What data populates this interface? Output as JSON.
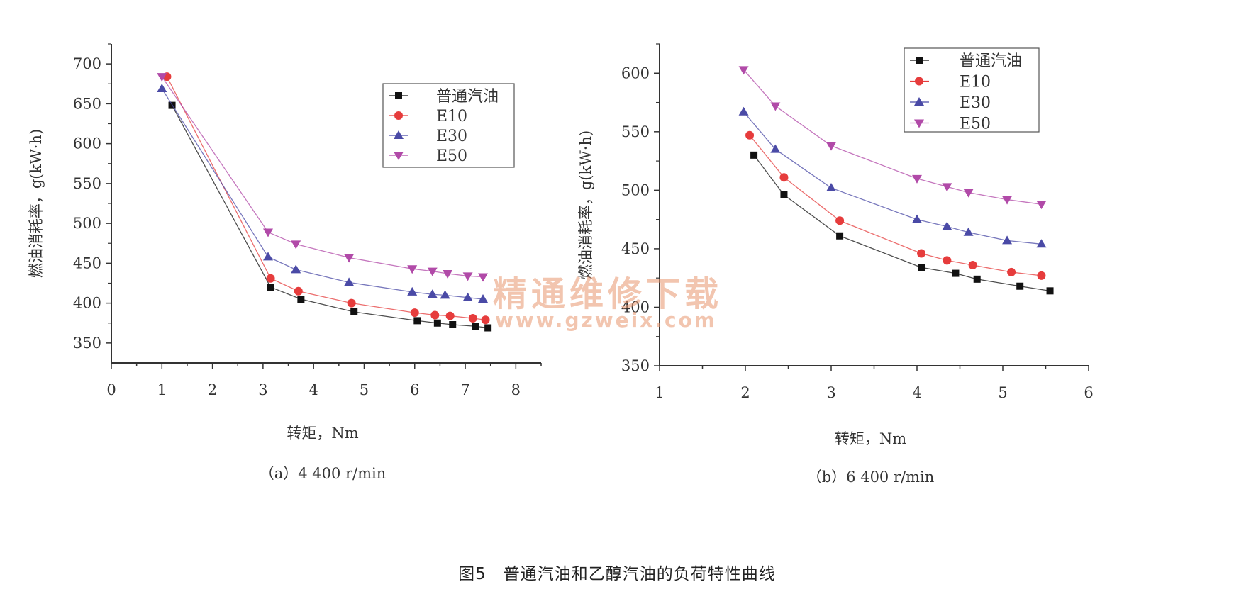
{
  "figure_caption": "图5　普通汽油和乙醇汽油的负荷特性曲线",
  "watermark": {
    "line1": "精通维修下载",
    "line2": "www.gzweix.com"
  },
  "colors": {
    "普通汽油": "#111111",
    "E10": "#e63c3c",
    "E30": "#4a4aa6",
    "E50": "#b14aa8"
  },
  "chart_data": [
    {
      "type": "line",
      "panel_label": "（a）4 400 r/min",
      "xlabel": "转矩，Nm",
      "ylabel": "燃油消耗率，g(kW·h)",
      "xlim": [
        0,
        8.5
      ],
      "ylim": [
        325,
        725
      ],
      "xticks": [
        0,
        1,
        2,
        3,
        4,
        5,
        6,
        7,
        8
      ],
      "yticks": [
        350,
        400,
        450,
        500,
        550,
        600,
        650,
        700
      ],
      "legend": "top-right",
      "series": [
        {
          "name": "普通汽油",
          "marker": "square",
          "x": [
            1.2,
            3.15,
            3.75,
            4.8,
            6.05,
            6.45,
            6.75,
            7.2,
            7.45
          ],
          "y": [
            648,
            420,
            405,
            389,
            378,
            375,
            373,
            371,
            369
          ]
        },
        {
          "name": "E10",
          "marker": "circle",
          "x": [
            1.1,
            3.15,
            3.7,
            4.75,
            6.0,
            6.4,
            6.7,
            7.15,
            7.4
          ],
          "y": [
            684,
            431,
            415,
            400,
            388,
            385,
            384,
            381,
            379
          ]
        },
        {
          "name": "E30",
          "marker": "triangle-up",
          "x": [
            1.0,
            3.1,
            3.65,
            4.7,
            5.95,
            6.35,
            6.6,
            7.05,
            7.35
          ],
          "y": [
            669,
            458,
            442,
            426,
            414,
            411,
            410,
            407,
            405
          ]
        },
        {
          "name": "E50",
          "marker": "triangle-down",
          "x": [
            1.0,
            3.1,
            3.65,
            4.7,
            5.95,
            6.35,
            6.65,
            7.05,
            7.35
          ],
          "y": [
            684,
            489,
            474,
            457,
            443,
            440,
            437,
            434,
            433
          ]
        }
      ]
    },
    {
      "type": "line",
      "panel_label": "（b）6 400 r/min",
      "xlabel": "转矩，Nm",
      "ylabel": "燃油消耗率，g(kW·h)",
      "xlim": [
        1,
        6
      ],
      "ylim": [
        350,
        625
      ],
      "xticks": [
        1,
        2,
        3,
        4,
        5,
        6
      ],
      "yticks": [
        350,
        400,
        450,
        500,
        550,
        600
      ],
      "legend": "top-right",
      "series": [
        {
          "name": "普通汽油",
          "marker": "square",
          "x": [
            2.1,
            2.45,
            3.1,
            4.05,
            4.45,
            4.7,
            5.2,
            5.55
          ],
          "y": [
            530,
            496,
            461,
            434,
            429,
            424,
            418,
            414
          ]
        },
        {
          "name": "E10",
          "marker": "circle",
          "x": [
            2.05,
            2.45,
            3.1,
            4.05,
            4.35,
            4.65,
            5.1,
            5.45
          ],
          "y": [
            547,
            511,
            474,
            446,
            440,
            436,
            430,
            427
          ]
        },
        {
          "name": "E30",
          "marker": "triangle-up",
          "x": [
            1.98,
            2.35,
            3.0,
            4.0,
            4.35,
            4.6,
            5.05,
            5.45
          ],
          "y": [
            567,
            535,
            502,
            475,
            469,
            464,
            457,
            454
          ]
        },
        {
          "name": "E50",
          "marker": "triangle-down",
          "x": [
            1.98,
            2.35,
            3.0,
            4.0,
            4.35,
            4.6,
            5.05,
            5.45
          ],
          "y": [
            603,
            572,
            538,
            510,
            503,
            498,
            492,
            488
          ]
        }
      ]
    }
  ]
}
